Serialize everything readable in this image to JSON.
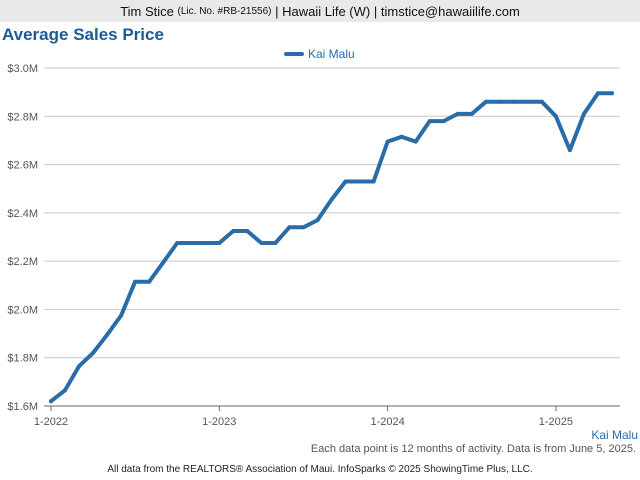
{
  "header": {
    "agent_name": "Tim Stice",
    "license": "(Lic. No. #RB-21556)",
    "separator_1": "|",
    "brokerage": "Hawaii Life (W)",
    "separator_2": "|",
    "email": "timstice@hawaiilife.com"
  },
  "chart_title": "Average Sales Price",
  "footnote": "Each data point is 12 months of activity. Data is from June 5, 2025.",
  "series_label": "Kai Malu",
  "copyright": "All data from the REALTORS® Association of Maui. InfoSparks © 2025 ShowingTime Plus, LLC.",
  "colors": {
    "line": "#2a6ca8",
    "grid": "#c8c8c8",
    "title": "#1f5a93"
  },
  "chart_data": {
    "type": "line",
    "title": "Average Sales Price",
    "xlabel": "",
    "ylabel": "",
    "legend": {
      "position": "top-center",
      "entries": [
        "Kai Malu"
      ]
    },
    "grid": true,
    "x_ticks": [
      "1-2022",
      "1-2023",
      "1-2024",
      "1-2025"
    ],
    "y_ticks": [
      "$1.6M",
      "$1.8M",
      "$2.0M",
      "$2.2M",
      "$2.4M",
      "$2.6M",
      "$2.8M",
      "$3.0M"
    ],
    "ylim": [
      1600000,
      3000000
    ],
    "series": [
      {
        "name": "Kai Malu",
        "x": [
          "2022-01",
          "2022-02",
          "2022-03",
          "2022-04",
          "2022-05",
          "2022-06",
          "2022-07",
          "2022-08",
          "2022-09",
          "2022-10",
          "2022-11",
          "2022-12",
          "2023-01",
          "2023-02",
          "2023-03",
          "2023-04",
          "2023-05",
          "2023-06",
          "2023-07",
          "2023-08",
          "2023-09",
          "2023-10",
          "2023-11",
          "2023-12",
          "2024-01",
          "2024-02",
          "2024-03",
          "2024-04",
          "2024-05",
          "2024-06",
          "2024-07",
          "2024-08",
          "2024-09",
          "2024-10",
          "2024-11",
          "2024-12",
          "2025-01",
          "2025-02",
          "2025-03",
          "2025-04",
          "2025-05"
        ],
        "values": [
          1620000,
          1665000,
          1765000,
          1820000,
          1895000,
          1975000,
          2115000,
          2115000,
          2195000,
          2275000,
          2275000,
          2275000,
          2275000,
          2325000,
          2325000,
          2275000,
          2275000,
          2340000,
          2340000,
          2370000,
          2455000,
          2530000,
          2530000,
          2530000,
          2695000,
          2715000,
          2695000,
          2780000,
          2780000,
          2810000,
          2810000,
          2860000,
          2860000,
          2860000,
          2860000,
          2860000,
          2800000,
          2660000,
          2810000,
          2895000,
          2895000
        ]
      }
    ]
  }
}
